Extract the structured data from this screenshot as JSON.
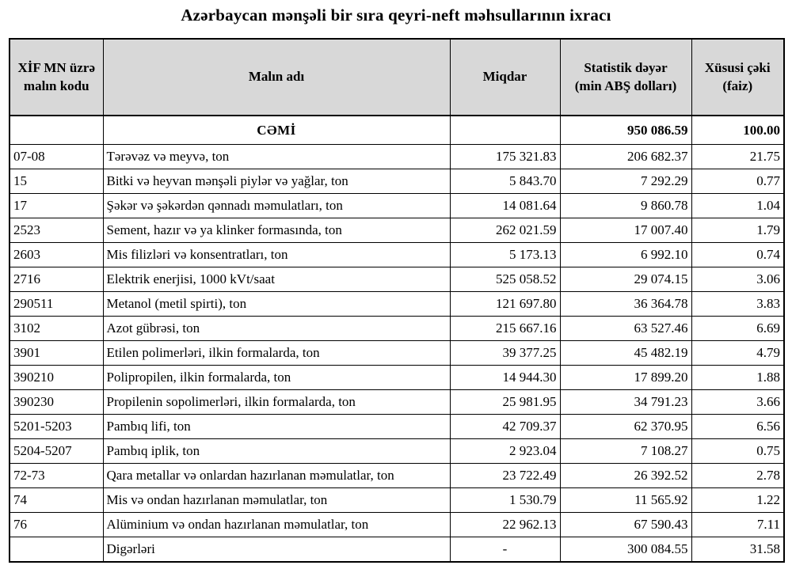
{
  "page": {
    "title": "Azərbaycan mənşəli bir sıra qeyri-neft məhsullarının ixracı"
  },
  "colors": {
    "header_bg": "#d8d8d8",
    "border": "#000000",
    "text": "#000000",
    "page_bg": "#ffffff"
  },
  "table": {
    "headers": [
      "XİF MN üzrə\nmalın kodu",
      "Malın adı",
      "Miqdar",
      "Statistik dəyər\n(min ABŞ dolları)",
      "Xüsusi çəki\n(faiz)"
    ],
    "total_row": {
      "code": "",
      "name": "CƏMİ",
      "quantity": "",
      "value": "950 086.59",
      "share": "100.00"
    },
    "rows": [
      {
        "code": "07-08",
        "name": "Tərəvəz və meyvə, ton",
        "quantity": "175 321.83",
        "value": "206 682.37",
        "share": "21.75"
      },
      {
        "code": "15",
        "name": "Bitki və heyvan mənşəli piylər və yağlar, ton",
        "quantity": "5 843.70",
        "value": "7 292.29",
        "share": "0.77"
      },
      {
        "code": "17",
        "name": "Şəkər və şəkərdən qənnadı məmulatları, ton",
        "quantity": "14 081.64",
        "value": "9 860.78",
        "share": "1.04"
      },
      {
        "code": "2523",
        "name": "Sement, hazır və ya klinker formasında, ton",
        "quantity": "262 021.59",
        "value": "17 007.40",
        "share": "1.79"
      },
      {
        "code": "2603",
        "name": "Mis filizləri və konsentratları, ton",
        "quantity": "5 173.13",
        "value": "6 992.10",
        "share": "0.74"
      },
      {
        "code": "2716",
        "name": "Elektrik enerjisi, 1000 kVt/saat",
        "quantity": "525 058.52",
        "value": "29 074.15",
        "share": "3.06"
      },
      {
        "code": "290511",
        "name": "Metanol (metil spirti), ton",
        "quantity": "121 697.80",
        "value": "36 364.78",
        "share": "3.83"
      },
      {
        "code": "3102",
        "name": "Azot gübrəsi, ton",
        "quantity": "215 667.16",
        "value": "63 527.46",
        "share": "6.69"
      },
      {
        "code": "3901",
        "name": "Etilen polimerləri, ilkin formalarda, ton",
        "quantity": "39 377.25",
        "value": "45 482.19",
        "share": "4.79"
      },
      {
        "code": "390210",
        "name": "Polipropilen, ilkin formalarda, ton",
        "quantity": "14 944.30",
        "value": "17 899.20",
        "share": "1.88"
      },
      {
        "code": "390230",
        "name": "Propilenin sopolimerləri, ilkin formalarda, ton",
        "quantity": "25 981.95",
        "value": "34 791.23",
        "share": "3.66"
      },
      {
        "code": "5201-5203",
        "name": "Pambıq lifi, ton",
        "quantity": "42 709.37",
        "value": "62 370.95",
        "share": "6.56"
      },
      {
        "code": "5204-5207",
        "name": "Pambıq iplik, ton",
        "quantity": "2 923.04",
        "value": "7 108.27",
        "share": "0.75"
      },
      {
        "code": "72-73",
        "name": "Qara metallar və onlardan hazırlanan məmulatlar, ton",
        "quantity": "23 722.49",
        "value": "26 392.52",
        "share": "2.78"
      },
      {
        "code": "74",
        "name": "Mis və ondan hazırlanan məmulatlar, ton",
        "quantity": "1 530.79",
        "value": "11 565.92",
        "share": "1.22"
      },
      {
        "code": "76",
        "name": "Alüminium və ondan hazırlanan məmulatlar, ton",
        "quantity": "22 962.13",
        "value": "67 590.43",
        "share": "7.11"
      },
      {
        "code": "",
        "name": "Digərləri",
        "quantity": "-",
        "value": "300 084.55",
        "share": "31.58"
      }
    ]
  }
}
